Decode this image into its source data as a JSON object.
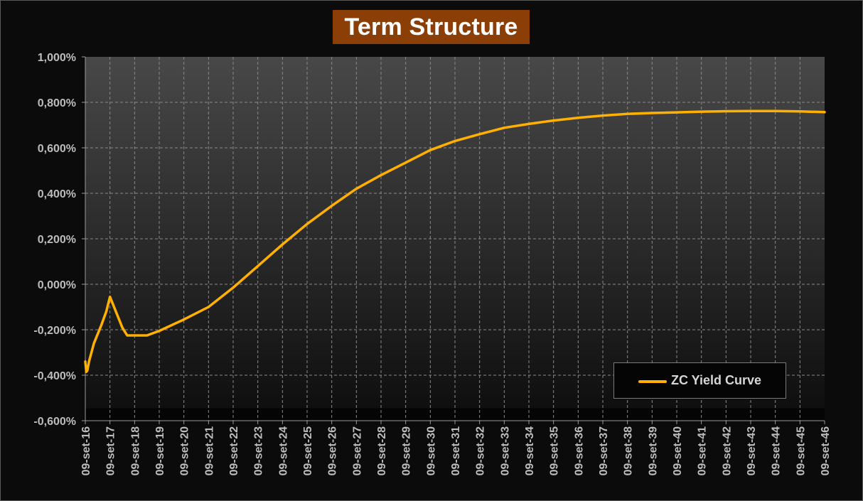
{
  "chart_data": {
    "type": "line",
    "title": "Term Structure",
    "legend_position": "bottom-right",
    "grid": true,
    "x_labels": [
      "09-set-16",
      "09-set-17",
      "09-set-18",
      "09-set-19",
      "09-set-20",
      "09-set-21",
      "09-set-22",
      "09-set-23",
      "09-set-24",
      "09-set-25",
      "09-set-26",
      "09-set-27",
      "09-set-28",
      "09-set-29",
      "09-set-30",
      "09-set-31",
      "09-set-32",
      "09-set-33",
      "09-set-34",
      "09-set-35",
      "09-set-36",
      "09-set-37",
      "09-set-38",
      "09-set-39",
      "09-set-40",
      "09-set-41",
      "09-set-42",
      "09-set-43",
      "09-set-44",
      "09-set-45",
      "09-set-46"
    ],
    "y_ticks": [
      "1,000%",
      "0,800%",
      "0,600%",
      "0,400%",
      "0,200%",
      "0,000%",
      "-0,200%",
      "-0,400%",
      "-0,600%"
    ],
    "ylim": [
      -0.6,
      1.0
    ],
    "series": [
      {
        "name": "ZC Yield Curve",
        "color": "#ffb000",
        "points": [
          [
            0.0,
            -0.34
          ],
          [
            0.04,
            -0.385
          ],
          [
            0.08,
            -0.38
          ],
          [
            0.15,
            -0.34
          ],
          [
            0.35,
            -0.26
          ],
          [
            0.65,
            -0.18
          ],
          [
            0.85,
            -0.12
          ],
          [
            1.0,
            -0.055
          ],
          [
            1.5,
            -0.19
          ],
          [
            1.7,
            -0.225
          ],
          [
            2.0,
            -0.225
          ],
          [
            2.5,
            -0.225
          ],
          [
            3.0,
            -0.205
          ],
          [
            4.0,
            -0.155
          ],
          [
            5.0,
            -0.1
          ],
          [
            6.0,
            -0.015
          ],
          [
            7.0,
            0.08
          ],
          [
            8.0,
            0.175
          ],
          [
            9.0,
            0.265
          ],
          [
            10.0,
            0.345
          ],
          [
            11.0,
            0.42
          ],
          [
            12.0,
            0.48
          ],
          [
            13.0,
            0.535
          ],
          [
            14.0,
            0.59
          ],
          [
            15.0,
            0.63
          ],
          [
            16.0,
            0.66
          ],
          [
            17.0,
            0.688
          ],
          [
            18.0,
            0.705
          ],
          [
            19.0,
            0.72
          ],
          [
            20.0,
            0.732
          ],
          [
            21.0,
            0.742
          ],
          [
            22.0,
            0.749
          ],
          [
            23.0,
            0.753
          ],
          [
            24.0,
            0.756
          ],
          [
            25.0,
            0.759
          ],
          [
            26.0,
            0.761
          ],
          [
            27.0,
            0.762
          ],
          [
            28.0,
            0.762
          ],
          [
            29.0,
            0.76
          ],
          [
            30.0,
            0.757
          ]
        ]
      }
    ]
  }
}
